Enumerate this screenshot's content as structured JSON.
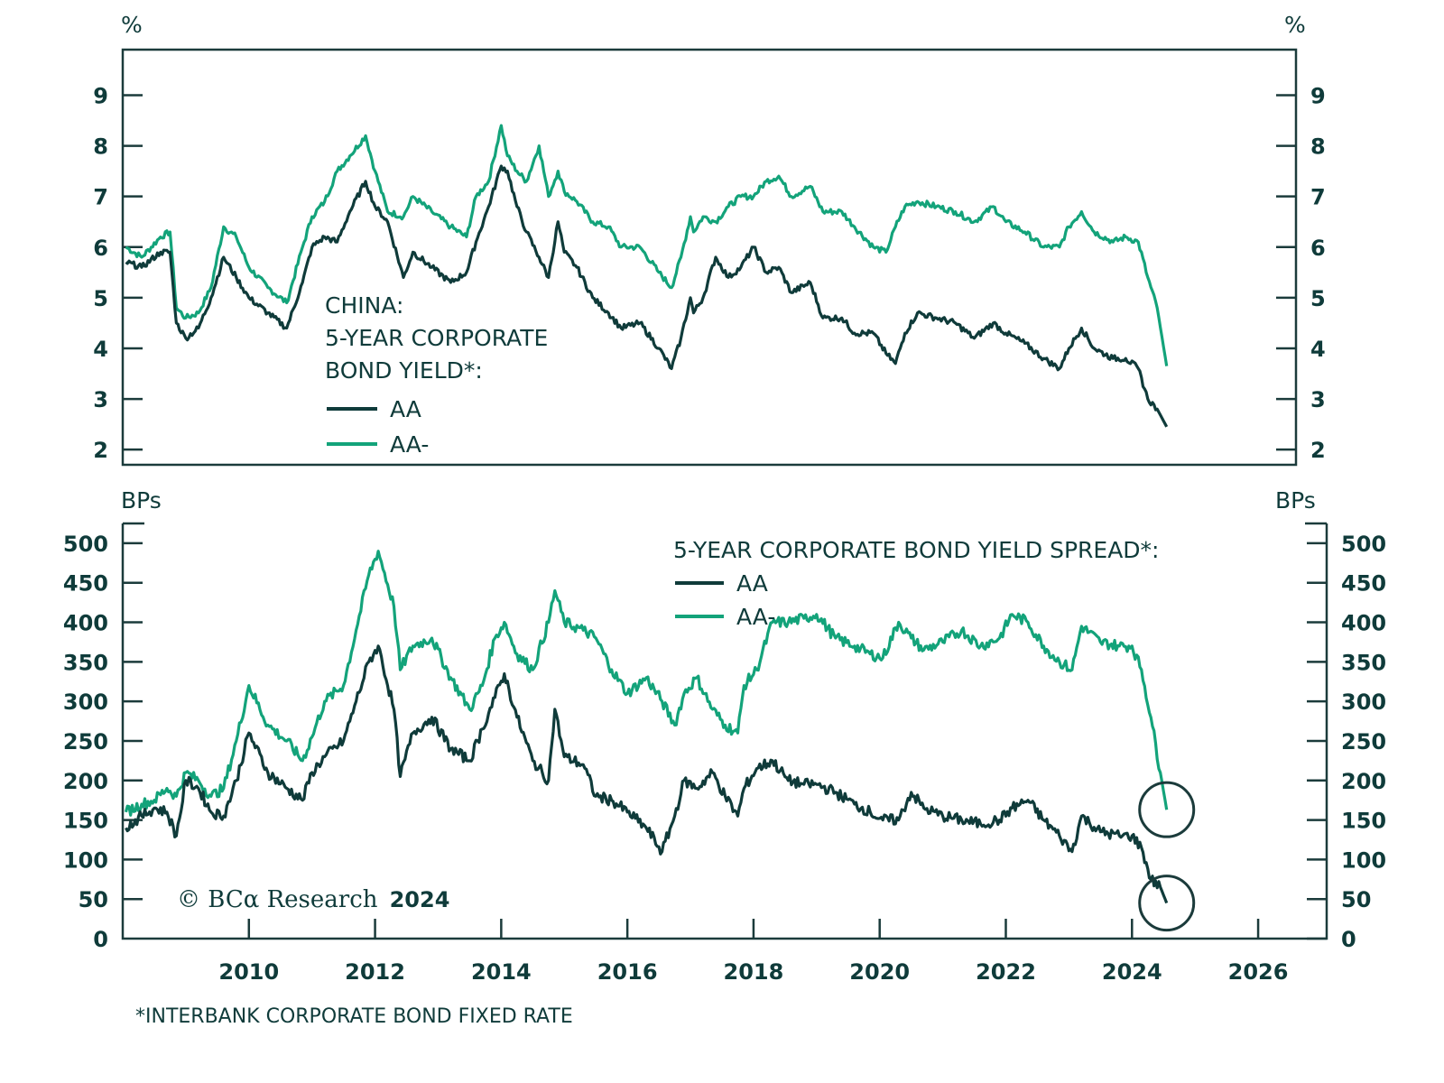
{
  "colors": {
    "axis": "#1b3b3b",
    "AA": "#0f3b3a",
    "AA-": "#13a37a",
    "text": "#0f3b3a"
  },
  "chart_data": [
    {
      "type": "line",
      "title": "CHINA: 5-YEAR CORPORATE BOND YIELD*:",
      "title_lines": [
        "CHINA:",
        "5-YEAR CORPORATE",
        "BOND YIELD*:"
      ],
      "ylabel_left": "%",
      "ylabel_right": "%",
      "ylim": [
        1.7,
        9.9
      ],
      "yticks": [
        2,
        3,
        4,
        5,
        6,
        7,
        8,
        9
      ],
      "xlim": [
        2008.0,
        2026.6
      ],
      "grid": false,
      "legend_position": "bottom-left",
      "series": [
        {
          "name": "AA",
          "x": [
            2008.05,
            2008.3,
            2008.6,
            2008.75,
            2008.85,
            2009.0,
            2009.2,
            2009.4,
            2009.6,
            2009.8,
            2010.0,
            2010.3,
            2010.6,
            2010.85,
            2011.0,
            2011.2,
            2011.4,
            2011.6,
            2011.85,
            2012.0,
            2012.2,
            2012.45,
            2012.6,
            2012.9,
            2013.2,
            2013.45,
            2013.6,
            2013.8,
            2014.0,
            2014.1,
            2014.25,
            2014.4,
            2014.6,
            2014.75,
            2014.9,
            2015.0,
            2015.2,
            2015.45,
            2015.7,
            2015.9,
            2016.2,
            2016.5,
            2016.7,
            2016.85,
            2017.0,
            2017.05,
            2017.2,
            2017.4,
            2017.6,
            2017.8,
            2018.0,
            2018.2,
            2018.4,
            2018.6,
            2018.9,
            2019.1,
            2019.4,
            2019.6,
            2019.9,
            2020.1,
            2020.25,
            2020.4,
            2020.6,
            2020.9,
            2021.2,
            2021.5,
            2021.8,
            2022.0,
            2022.3,
            2022.6,
            2022.85,
            2023.0,
            2023.2,
            2023.4,
            2023.7,
            2023.9,
            2024.1,
            2024.25,
            2024.4,
            2024.55
          ],
          "y": [
            5.7,
            5.6,
            5.9,
            5.9,
            4.5,
            4.2,
            4.4,
            5.0,
            5.8,
            5.4,
            5.0,
            4.7,
            4.4,
            5.3,
            6.0,
            6.2,
            6.1,
            6.7,
            7.3,
            6.8,
            6.5,
            5.4,
            5.9,
            5.6,
            5.3,
            5.5,
            6.1,
            6.8,
            7.6,
            7.5,
            6.8,
            6.3,
            5.8,
            5.4,
            6.5,
            5.9,
            5.6,
            5.0,
            4.7,
            4.4,
            4.5,
            4.0,
            3.6,
            4.2,
            5.0,
            4.7,
            5.0,
            5.8,
            5.4,
            5.6,
            6.0,
            5.5,
            5.6,
            5.1,
            5.3,
            4.6,
            4.6,
            4.3,
            4.3,
            3.9,
            3.7,
            4.3,
            4.7,
            4.6,
            4.5,
            4.2,
            4.5,
            4.3,
            4.1,
            3.8,
            3.6,
            4.0,
            4.4,
            4.0,
            3.8,
            3.8,
            3.6,
            3.0,
            2.8,
            2.45
          ]
        },
        {
          "name": "AA-",
          "x": [
            2008.05,
            2008.3,
            2008.6,
            2008.75,
            2008.85,
            2009.0,
            2009.2,
            2009.4,
            2009.6,
            2009.8,
            2010.0,
            2010.3,
            2010.6,
            2010.85,
            2011.0,
            2011.2,
            2011.4,
            2011.6,
            2011.85,
            2012.0,
            2012.2,
            2012.45,
            2012.6,
            2012.9,
            2013.2,
            2013.45,
            2013.6,
            2013.8,
            2014.0,
            2014.1,
            2014.25,
            2014.4,
            2014.6,
            2014.75,
            2014.9,
            2015.0,
            2015.2,
            2015.45,
            2015.7,
            2015.9,
            2016.2,
            2016.5,
            2016.7,
            2016.85,
            2017.0,
            2017.05,
            2017.2,
            2017.4,
            2017.6,
            2017.8,
            2018.0,
            2018.2,
            2018.4,
            2018.6,
            2018.9,
            2019.1,
            2019.4,
            2019.6,
            2019.9,
            2020.1,
            2020.25,
            2020.4,
            2020.6,
            2020.9,
            2021.2,
            2021.5,
            2021.8,
            2022.0,
            2022.3,
            2022.6,
            2022.85,
            2023.0,
            2023.2,
            2023.4,
            2023.7,
            2023.9,
            2024.1,
            2024.25,
            2024.4,
            2024.55
          ],
          "y": [
            6.0,
            5.8,
            6.2,
            6.3,
            4.8,
            4.6,
            4.7,
            5.2,
            6.4,
            6.2,
            5.6,
            5.2,
            4.9,
            6.0,
            6.6,
            6.9,
            7.5,
            7.8,
            8.2,
            7.5,
            6.7,
            6.6,
            7.0,
            6.7,
            6.4,
            6.2,
            7.0,
            7.3,
            8.4,
            7.8,
            7.5,
            7.3,
            8.0,
            7.0,
            7.5,
            7.1,
            6.9,
            6.5,
            6.4,
            6.0,
            6.0,
            5.5,
            5.2,
            5.8,
            6.6,
            6.3,
            6.6,
            6.5,
            6.8,
            7.0,
            7.0,
            7.3,
            7.4,
            7.0,
            7.2,
            6.7,
            6.7,
            6.4,
            6.0,
            5.9,
            6.4,
            6.8,
            6.9,
            6.8,
            6.7,
            6.5,
            6.8,
            6.5,
            6.3,
            6.0,
            6.0,
            6.4,
            6.7,
            6.3,
            6.1,
            6.2,
            6.1,
            5.4,
            4.8,
            3.65
          ]
        }
      ]
    },
    {
      "type": "line",
      "title": "5-YEAR CORPORATE BOND YIELD SPREAD*:",
      "ylabel_left": "BPs",
      "ylabel_right": "BPs",
      "ylim": [
        0,
        525
      ],
      "yticks": [
        0,
        50,
        100,
        150,
        200,
        250,
        300,
        350,
        400,
        450,
        500
      ],
      "xlim": [
        2008.0,
        2026.6
      ],
      "xticks": [
        2010,
        2012,
        2014,
        2016,
        2018,
        2020,
        2022,
        2024,
        2026
      ],
      "grid": false,
      "legend_position": "top-right",
      "annotations": [
        {
          "type": "circle",
          "series": "AA-",
          "x": 2024.55,
          "y": 163
        },
        {
          "type": "circle",
          "series": "AA",
          "x": 2024.55,
          "y": 45
        }
      ],
      "series": [
        {
          "name": "AA",
          "x": [
            2008.05,
            2008.3,
            2008.5,
            2008.7,
            2008.85,
            2009.0,
            2009.2,
            2009.4,
            2009.6,
            2009.8,
            2010.0,
            2010.3,
            2010.6,
            2010.85,
            2011.0,
            2011.2,
            2011.5,
            2011.7,
            2011.9,
            2012.05,
            2012.3,
            2012.4,
            2012.6,
            2012.9,
            2013.2,
            2013.5,
            2013.7,
            2013.9,
            2014.05,
            2014.25,
            2014.5,
            2014.75,
            2014.85,
            2015.0,
            2015.3,
            2015.5,
            2015.75,
            2016.0,
            2016.3,
            2016.55,
            2016.75,
            2016.9,
            2017.1,
            2017.35,
            2017.55,
            2017.75,
            2017.85,
            2018.05,
            2018.3,
            2018.55,
            2018.8,
            2019.0,
            2019.3,
            2019.6,
            2019.85,
            2020.05,
            2020.3,
            2020.5,
            2020.7,
            2021.0,
            2021.3,
            2021.6,
            2021.9,
            2022.1,
            2022.35,
            2022.6,
            2022.85,
            2023.05,
            2023.2,
            2023.5,
            2023.8,
            2024.0,
            2024.15,
            2024.3,
            2024.45,
            2024.55
          ],
          "y": [
            140,
            155,
            165,
            160,
            130,
            200,
            190,
            160,
            155,
            200,
            260,
            210,
            190,
            175,
            210,
            230,
            250,
            300,
            350,
            370,
            290,
            205,
            260,
            280,
            240,
            225,
            265,
            305,
            335,
            280,
            225,
            200,
            290,
            230,
            220,
            180,
            175,
            160,
            140,
            110,
            155,
            200,
            190,
            210,
            180,
            155,
            190,
            215,
            225,
            200,
            195,
            195,
            185,
            170,
            160,
            150,
            150,
            185,
            165,
            155,
            150,
            145,
            150,
            165,
            175,
            150,
            130,
            110,
            155,
            135,
            130,
            130,
            115,
            75,
            65,
            45
          ]
        },
        {
          "name": "AA-",
          "x": [
            2008.05,
            2008.3,
            2008.5,
            2008.7,
            2008.85,
            2009.0,
            2009.2,
            2009.4,
            2009.6,
            2009.8,
            2010.0,
            2010.3,
            2010.6,
            2010.85,
            2011.0,
            2011.2,
            2011.5,
            2011.7,
            2011.9,
            2012.05,
            2012.3,
            2012.4,
            2012.6,
            2012.9,
            2013.2,
            2013.5,
            2013.7,
            2013.9,
            2014.05,
            2014.25,
            2014.5,
            2014.75,
            2014.85,
            2015.0,
            2015.3,
            2015.5,
            2015.75,
            2016.0,
            2016.3,
            2016.55,
            2016.75,
            2016.9,
            2017.1,
            2017.35,
            2017.55,
            2017.75,
            2017.85,
            2018.05,
            2018.3,
            2018.55,
            2018.8,
            2019.0,
            2019.3,
            2019.6,
            2019.85,
            2020.05,
            2020.3,
            2020.5,
            2020.7,
            2021.0,
            2021.3,
            2021.6,
            2021.9,
            2022.1,
            2022.35,
            2022.6,
            2022.85,
            2023.05,
            2023.2,
            2023.5,
            2023.8,
            2024.0,
            2024.15,
            2024.3,
            2024.45,
            2024.55
          ],
          "y": [
            160,
            170,
            175,
            190,
            180,
            210,
            200,
            180,
            190,
            250,
            320,
            270,
            250,
            225,
            255,
            300,
            320,
            390,
            460,
            490,
            420,
            340,
            370,
            380,
            330,
            290,
            320,
            380,
            400,
            360,
            340,
            400,
            440,
            400,
            390,
            380,
            340,
            310,
            330,
            300,
            270,
            310,
            330,
            290,
            270,
            260,
            320,
            340,
            400,
            400,
            405,
            410,
            380,
            370,
            360,
            355,
            400,
            380,
            365,
            375,
            390,
            370,
            380,
            410,
            400,
            370,
            350,
            340,
            395,
            375,
            370,
            370,
            340,
            280,
            210,
            163
          ]
        }
      ]
    }
  ],
  "labels": {
    "top_unit_left": "%",
    "top_unit_right": "%",
    "bottom_unit_left": "BPs",
    "bottom_unit_right": "BPs",
    "legend_AA": "AA",
    "legend_AAminus": "AA-",
    "copyright_prefix": "© BCα Research",
    "copyright_year": "2024",
    "footnote": "*INTERBANK CORPORATE BOND FIXED RATE"
  }
}
